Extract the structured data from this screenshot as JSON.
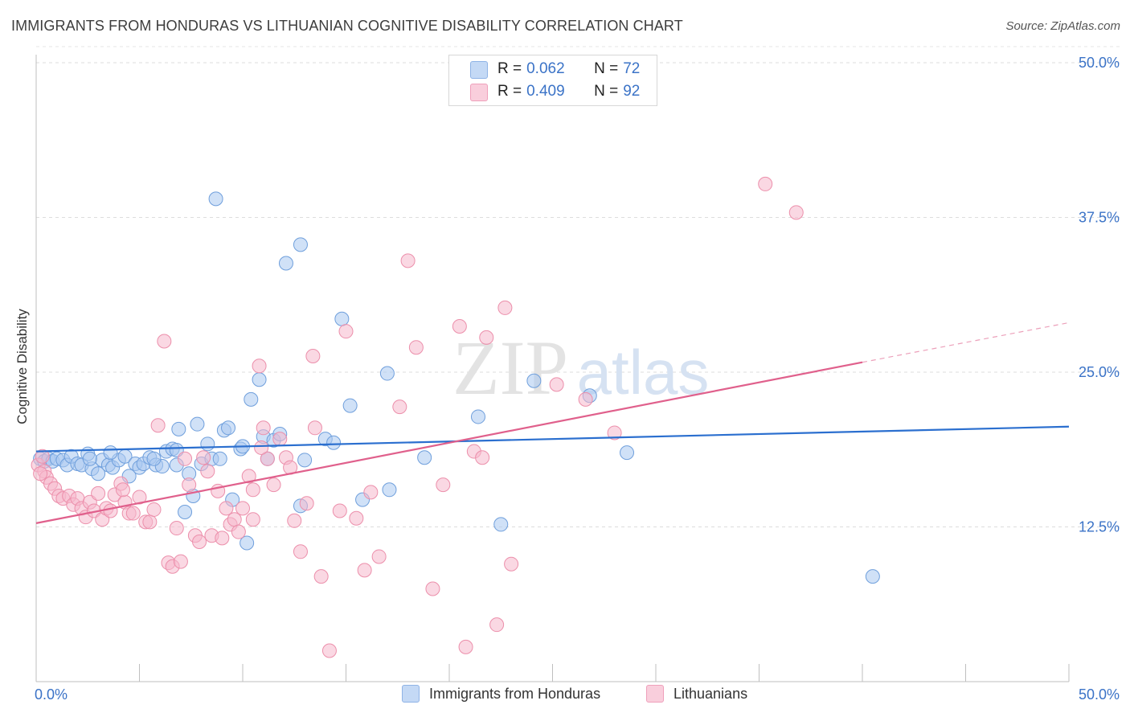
{
  "title": "IMMIGRANTS FROM HONDURAS VS LITHUANIAN COGNITIVE DISABILITY CORRELATION CHART",
  "source": "Source: ZipAtlas.com",
  "watermark": {
    "zip": "ZIP",
    "atlas": "atlas"
  },
  "legend_top": {
    "rows": [
      {
        "r_label": "R =",
        "r_value": "0.062",
        "n_label": "N =",
        "n_value": "72",
        "color": "#a9c8f0"
      },
      {
        "r_label": "R =",
        "r_value": "0.409",
        "n_label": "N =",
        "n_value": "92",
        "color": "#f6b8cc"
      }
    ]
  },
  "legend_bottom": [
    {
      "label": "Immigrants from Honduras",
      "color": "#a9c8f0"
    },
    {
      "label": "Lithuanians",
      "color": "#f6b8cc"
    }
  ],
  "chart_data": {
    "type": "scatter",
    "title": "IMMIGRANTS FROM HONDURAS VS LITHUANIAN COGNITIVE DISABILITY CORRELATION CHART",
    "xlabel": "",
    "ylabel": "Cognitive Disability",
    "xlim": [
      0,
      50
    ],
    "ylim": [
      0,
      50
    ],
    "x_tick_labels": [
      "0.0%",
      "50.0%"
    ],
    "y_tick_labels": [
      "12.5%",
      "25.0%",
      "37.5%",
      "50.0%"
    ],
    "y_ticks": [
      12.5,
      25.0,
      37.5,
      50.0
    ],
    "grid": "horizontal dashed",
    "legend_placement": "bottom",
    "series": [
      {
        "name": "Immigrants from Honduras",
        "color": "#a9c8f0",
        "stroke": "#6f9fdc",
        "trend_color": "#2b6fcf",
        "trend": {
          "x0": 0,
          "y0": 18.6,
          "x1": 50,
          "y1": 20.6
        },
        "points": [
          [
            0.2,
            18.0
          ],
          [
            0.4,
            17.8
          ],
          [
            0.6,
            18.0
          ],
          [
            0.8,
            17.8
          ],
          [
            1.0,
            18.0
          ],
          [
            1.3,
            17.9
          ],
          [
            1.5,
            17.5
          ],
          [
            1.7,
            18.2
          ],
          [
            2.0,
            17.6
          ],
          [
            2.2,
            17.5
          ],
          [
            2.5,
            18.4
          ],
          [
            2.7,
            17.2
          ],
          [
            3.0,
            16.8
          ],
          [
            3.2,
            17.9
          ],
          [
            3.5,
            17.5
          ],
          [
            3.7,
            17.3
          ],
          [
            4.0,
            17.9
          ],
          [
            4.3,
            18.2
          ],
          [
            4.5,
            16.6
          ],
          [
            4.8,
            17.6
          ],
          [
            5.0,
            17.3
          ],
          [
            5.2,
            17.6
          ],
          [
            5.5,
            18.1
          ],
          [
            5.8,
            17.5
          ],
          [
            6.1,
            17.4
          ],
          [
            6.3,
            18.6
          ],
          [
            6.6,
            18.8
          ],
          [
            6.8,
            18.7
          ],
          [
            6.9,
            20.4
          ],
          [
            7.2,
            13.7
          ],
          [
            7.4,
            16.8
          ],
          [
            7.6,
            15.0
          ],
          [
            7.8,
            20.8
          ],
          [
            8.0,
            17.6
          ],
          [
            8.3,
            19.2
          ],
          [
            8.5,
            18.0
          ],
          [
            8.7,
            39.0
          ],
          [
            8.9,
            18.0
          ],
          [
            9.1,
            20.3
          ],
          [
            9.3,
            20.5
          ],
          [
            9.5,
            14.7
          ],
          [
            9.9,
            18.8
          ],
          [
            10.2,
            11.2
          ],
          [
            10.4,
            22.8
          ],
          [
            10.8,
            24.4
          ],
          [
            11.0,
            19.8
          ],
          [
            11.2,
            18.0
          ],
          [
            11.5,
            19.5
          ],
          [
            11.8,
            20.0
          ],
          [
            12.1,
            33.8
          ],
          [
            12.8,
            35.3
          ],
          [
            13.0,
            17.9
          ],
          [
            14.0,
            19.6
          ],
          [
            14.4,
            19.3
          ],
          [
            14.8,
            29.3
          ],
          [
            15.2,
            22.3
          ],
          [
            15.8,
            14.7
          ],
          [
            17.0,
            24.9
          ],
          [
            17.1,
            15.5
          ],
          [
            18.8,
            18.1
          ],
          [
            21.4,
            21.4
          ],
          [
            22.5,
            12.7
          ],
          [
            24.1,
            24.3
          ],
          [
            26.8,
            23.1
          ],
          [
            28.6,
            18.5
          ],
          [
            40.5,
            8.5
          ],
          [
            12.8,
            14.2
          ],
          [
            10.0,
            19.0
          ],
          [
            6.8,
            17.5
          ],
          [
            2.6,
            18.0
          ],
          [
            3.6,
            18.5
          ],
          [
            5.7,
            18.0
          ]
        ]
      },
      {
        "name": "Lithuanians",
        "color": "#f6b8cc",
        "stroke": "#ec8fab",
        "trend_color": "#e0608c",
        "trend": {
          "x0": 0,
          "y0": 12.8,
          "x1": 40.0,
          "y1": 25.8
        },
        "trend_dashed_to": {
          "x": 50,
          "y": 29.0
        },
        "points": [
          [
            0.1,
            17.5
          ],
          [
            0.3,
            18.2
          ],
          [
            0.4,
            17.0
          ],
          [
            0.5,
            16.5
          ],
          [
            0.7,
            16.0
          ],
          [
            0.9,
            15.6
          ],
          [
            1.1,
            15.0
          ],
          [
            1.3,
            14.8
          ],
          [
            1.6,
            15.0
          ],
          [
            1.8,
            14.3
          ],
          [
            2.0,
            14.8
          ],
          [
            2.2,
            14.0
          ],
          [
            2.4,
            13.3
          ],
          [
            2.6,
            14.5
          ],
          [
            2.8,
            13.8
          ],
          [
            3.0,
            15.2
          ],
          [
            3.2,
            13.1
          ],
          [
            3.4,
            14.0
          ],
          [
            3.6,
            13.8
          ],
          [
            3.8,
            15.1
          ],
          [
            4.1,
            16.0
          ],
          [
            4.3,
            14.5
          ],
          [
            4.5,
            13.6
          ],
          [
            4.7,
            13.6
          ],
          [
            5.0,
            14.9
          ],
          [
            5.3,
            12.9
          ],
          [
            5.5,
            12.9
          ],
          [
            5.7,
            13.9
          ],
          [
            5.9,
            20.7
          ],
          [
            6.2,
            27.5
          ],
          [
            6.4,
            9.6
          ],
          [
            6.6,
            9.3
          ],
          [
            6.8,
            12.4
          ],
          [
            7.0,
            9.7
          ],
          [
            7.2,
            18.0
          ],
          [
            7.4,
            15.9
          ],
          [
            7.7,
            11.8
          ],
          [
            7.9,
            11.3
          ],
          [
            8.1,
            18.1
          ],
          [
            8.3,
            17.0
          ],
          [
            8.5,
            11.8
          ],
          [
            8.8,
            15.4
          ],
          [
            9.0,
            11.6
          ],
          [
            9.2,
            14.0
          ],
          [
            9.4,
            12.7
          ],
          [
            9.6,
            13.1
          ],
          [
            9.8,
            12.1
          ],
          [
            10.0,
            14.0
          ],
          [
            10.3,
            16.6
          ],
          [
            10.5,
            15.5
          ],
          [
            10.8,
            25.5
          ],
          [
            11.0,
            20.5
          ],
          [
            11.2,
            18.0
          ],
          [
            11.5,
            15.9
          ],
          [
            11.8,
            19.6
          ],
          [
            12.1,
            18.1
          ],
          [
            12.3,
            17.3
          ],
          [
            12.5,
            13.0
          ],
          [
            12.8,
            10.5
          ],
          [
            13.1,
            14.4
          ],
          [
            13.4,
            26.3
          ],
          [
            13.5,
            20.5
          ],
          [
            13.8,
            8.5
          ],
          [
            14.2,
            2.5
          ],
          [
            14.7,
            13.8
          ],
          [
            15.0,
            28.3
          ],
          [
            15.5,
            13.2
          ],
          [
            15.9,
            9.0
          ],
          [
            16.2,
            15.3
          ],
          [
            16.6,
            10.1
          ],
          [
            17.6,
            22.2
          ],
          [
            18.0,
            34.0
          ],
          [
            18.4,
            27.0
          ],
          [
            19.2,
            7.5
          ],
          [
            19.7,
            15.9
          ],
          [
            20.5,
            28.7
          ],
          [
            21.2,
            18.6
          ],
          [
            21.6,
            18.1
          ],
          [
            21.8,
            27.8
          ],
          [
            22.3,
            4.6
          ],
          [
            22.7,
            30.2
          ],
          [
            23.0,
            9.5
          ],
          [
            25.2,
            24.0
          ],
          [
            26.6,
            22.8
          ],
          [
            28.0,
            20.1
          ],
          [
            35.3,
            40.2
          ],
          [
            36.8,
            37.9
          ],
          [
            20.8,
            2.8
          ],
          [
            10.9,
            18.9
          ],
          [
            0.2,
            16.8
          ],
          [
            4.2,
            15.5
          ],
          [
            10.5,
            13.1
          ]
        ]
      }
    ]
  }
}
